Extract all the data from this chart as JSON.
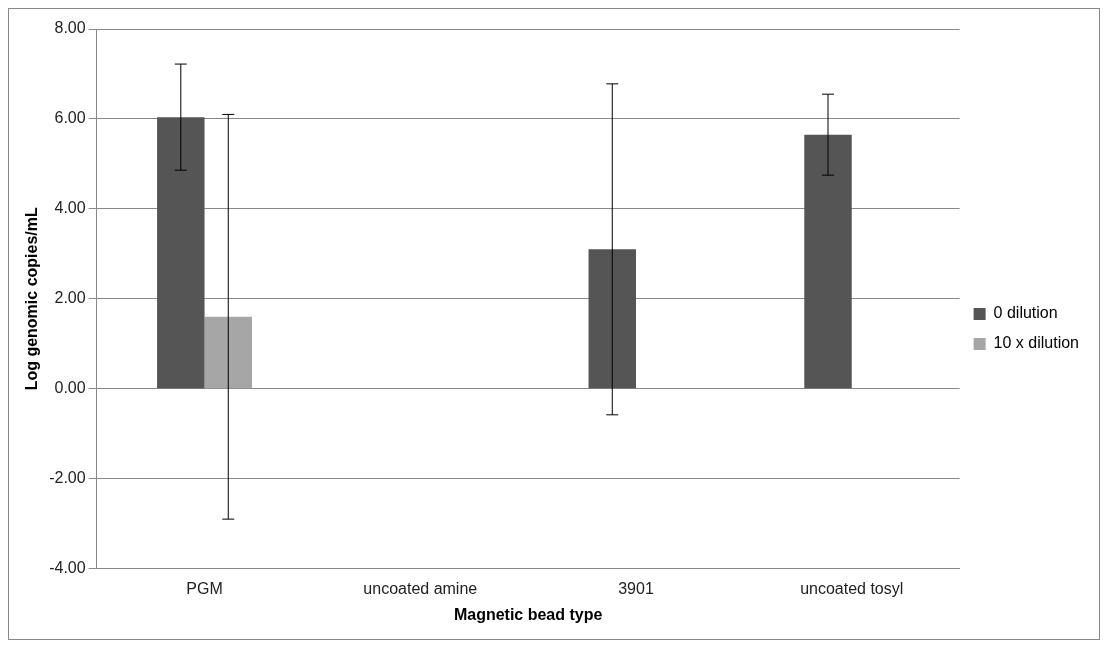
{
  "chart_data": {
    "type": "bar",
    "xlabel": "Magnetic bead type",
    "ylabel": "Log genomic copies/mL",
    "categories": [
      "PGM",
      "uncoated amine",
      "3901",
      "uncoated tosyl"
    ],
    "series": [
      {
        "name": "0 dilution",
        "color": "#555555",
        "values": [
          6.04,
          0,
          3.1,
          5.65
        ],
        "errors": [
          1.18,
          null,
          3.68,
          0.9
        ]
      },
      {
        "name": "10 x dilution",
        "color": "#a6a6a6",
        "values": [
          1.6,
          0,
          0,
          0
        ],
        "errors": [
          4.5,
          null,
          null,
          null
        ]
      }
    ],
    "ylim": [
      -4,
      8
    ],
    "yticks": [
      {
        "value": -4,
        "label": "-4.00"
      },
      {
        "value": -2,
        "label": "-2.00"
      },
      {
        "value": 0,
        "label": "0.00"
      },
      {
        "value": 2,
        "label": "2.00"
      },
      {
        "value": 4,
        "label": "4.00"
      },
      {
        "value": 6,
        "label": "6.00"
      },
      {
        "value": 8,
        "label": "8.00"
      }
    ],
    "grid": "y",
    "legend": "right"
  }
}
